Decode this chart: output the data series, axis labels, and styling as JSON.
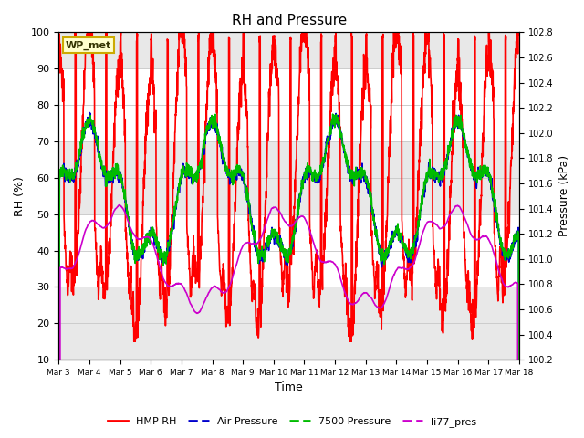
{
  "title": "RH and Pressure",
  "xlabel": "Time",
  "ylabel_left": "RH (%)",
  "ylabel_right": "Pressure (kPa)",
  "ylim_left": [
    10,
    100
  ],
  "ylim_right": [
    100.2,
    102.8
  ],
  "yticks_left": [
    10,
    20,
    30,
    40,
    50,
    60,
    70,
    80,
    90,
    100
  ],
  "yticks_right": [
    100.2,
    100.4,
    100.6,
    100.8,
    101.0,
    101.2,
    101.4,
    101.6,
    101.8,
    102.0,
    102.2,
    102.4,
    102.6,
    102.8
  ],
  "xtick_labels": [
    "Mar 3",
    "Mar 4",
    "Mar 5",
    "Mar 6",
    "Mar 7",
    "Mar 8",
    "Mar 9",
    "Mar 10",
    "Mar 11",
    "Mar 12",
    "Mar 13",
    "Mar 14",
    "Mar 15",
    "Mar 16",
    "Mar 17",
    "Mar 18"
  ],
  "label_box_text": "WP_met",
  "label_box_color": "#ffffcc",
  "label_box_edge": "#ccaa00",
  "bg_color": "#ffffff",
  "plot_bg_color": "#ffffff",
  "band_color": "#e8e8e8",
  "grid_color": "#cccccc",
  "series": [
    {
      "label": "HMP RH",
      "color": "#ff0000",
      "lw": 1.2
    },
    {
      "label": "Air Pressure",
      "color": "#0000cc",
      "lw": 1.2
    },
    {
      "label": "7500 Pressure",
      "color": "#00bb00",
      "lw": 1.2
    },
    {
      "label": "li77_pres",
      "color": "#cc00cc",
      "lw": 1.2
    }
  ],
  "n_days": 15,
  "pts_per_day": 144
}
